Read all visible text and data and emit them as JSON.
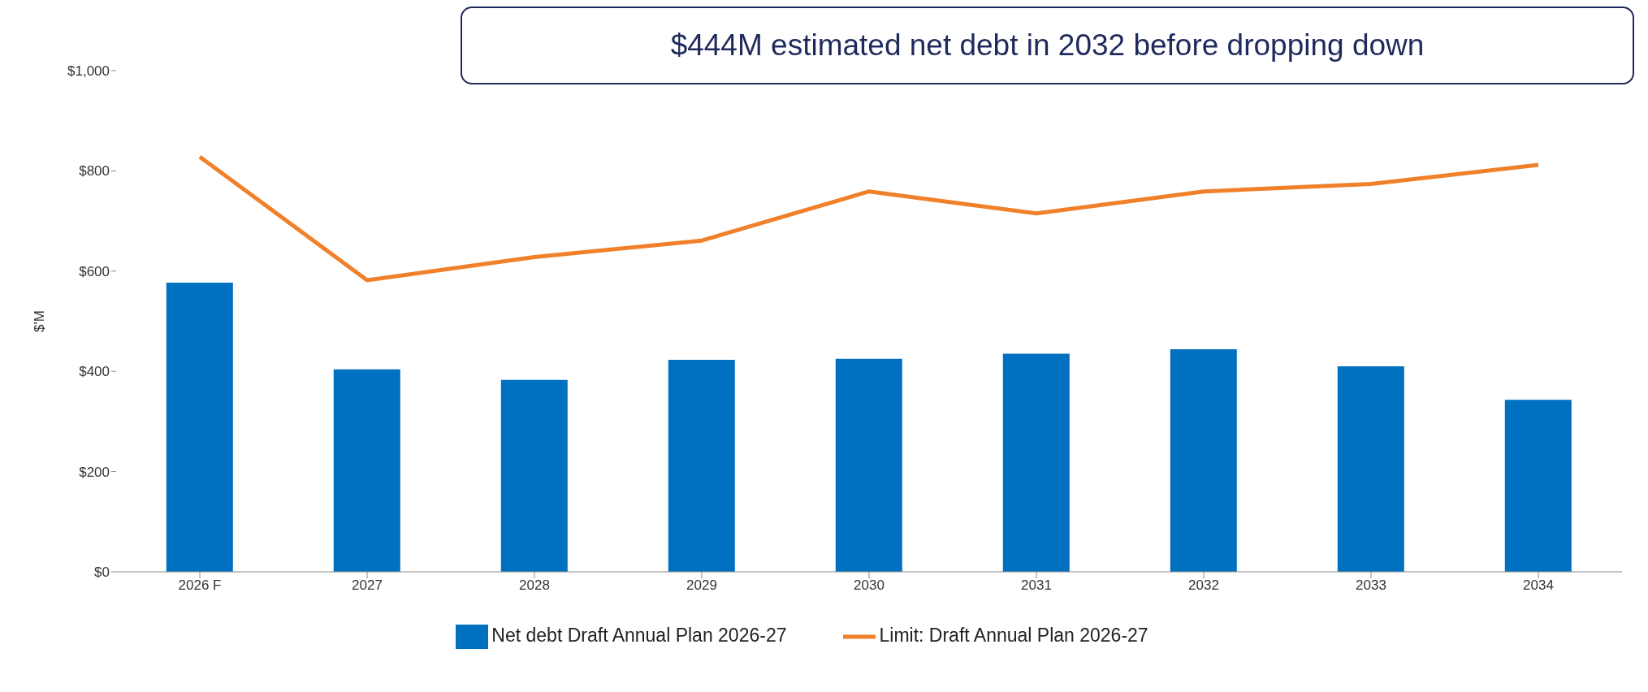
{
  "chart_data": {
    "type": "bar",
    "title": "$444M estimated net debt in 2032 before dropping down",
    "ylabel": "$'M",
    "categories": [
      "2026 F",
      "2027",
      "2028",
      "2029",
      "2030",
      "2031",
      "2032",
      "2033",
      "2034"
    ],
    "series": [
      {
        "name": "Net debt Draft Annual Plan 2026-27",
        "color": "#0070c0",
        "values": [
          577,
          404,
          383,
          423,
          425,
          435,
          444,
          410,
          343
        ]
      },
      {
        "name": "Limit: Draft Annual Plan 2026-27",
        "type": "line",
        "color": "#f0802a",
        "values": [
          828,
          582,
          628,
          661,
          759,
          715,
          759,
          774,
          812
        ]
      }
    ],
    "ylim": [
      0,
      1000
    ],
    "yticks": [
      {
        "value": 0,
        "label": "$0"
      },
      {
        "value": 200,
        "label": "$200"
      },
      {
        "value": 400,
        "label": "$400"
      },
      {
        "value": 600,
        "label": "$600"
      },
      {
        "value": 800,
        "label": "$800"
      },
      {
        "value": 1000,
        "label": "$1,000"
      }
    ],
    "grid": false,
    "legend": "bottom",
    "marker": "none",
    "line_style": "solid"
  }
}
